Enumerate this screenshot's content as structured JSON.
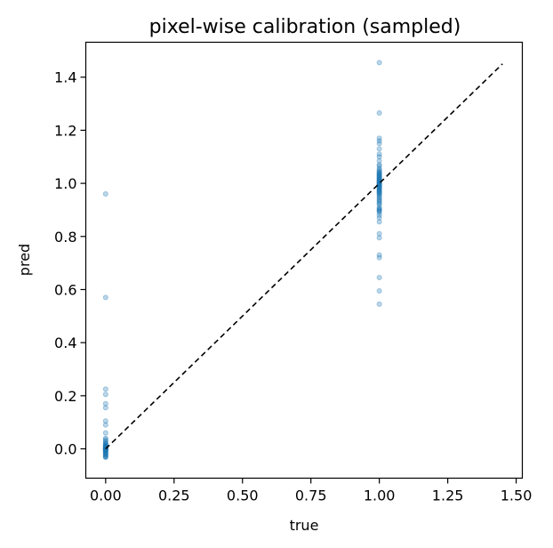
{
  "chart_data": {
    "type": "scatter",
    "title": "pixel-wise calibration (sampled)",
    "xlabel": "true",
    "ylabel": "pred",
    "xlim": [
      -0.0725,
      1.5225
    ],
    "ylim": [
      -0.1105,
      1.5315
    ],
    "xticks": [
      "0.00",
      "0.25",
      "0.50",
      "0.75",
      "1.00",
      "1.25",
      "1.50"
    ],
    "yticks": [
      "0.0",
      "0.2",
      "0.4",
      "0.6",
      "0.8",
      "1.0",
      "1.2",
      "1.4"
    ],
    "grid": false,
    "point_color": "#1f77b4",
    "point_alpha": 0.3,
    "reference_line": {
      "x": [
        0,
        1.45
      ],
      "y": [
        0,
        1.45
      ],
      "style": "dashed",
      "color": "#000000"
    },
    "points": {
      "x": [
        0,
        0,
        0,
        0,
        0,
        0,
        0,
        0,
        0,
        0,
        0,
        0,
        0,
        0,
        0,
        0,
        0,
        0,
        0,
        0,
        0,
        0,
        0,
        0,
        0,
        0,
        0,
        0,
        0,
        0,
        0,
        0,
        0,
        0,
        0,
        0,
        0,
        0,
        0,
        0,
        0,
        0,
        0,
        0,
        0,
        0,
        0,
        0,
        0,
        0,
        1,
        1,
        1,
        1,
        1,
        1,
        1,
        1,
        1,
        1,
        1,
        1,
        1,
        1,
        1,
        1,
        1,
        1,
        1,
        1,
        1,
        1,
        1,
        1,
        1,
        1,
        1,
        1,
        1,
        1,
        1,
        1,
        1,
        1,
        1,
        1,
        1,
        1,
        1,
        1,
        1,
        1,
        1,
        1,
        1,
        1,
        1,
        1,
        1,
        1,
        1,
        1,
        1,
        1,
        1,
        1,
        1,
        1,
        1,
        1,
        1,
        1,
        1,
        1,
        1,
        1,
        1,
        1,
        1,
        1,
        1,
        1,
        1,
        1,
        1,
        1,
        1
      ],
      "y": [
        0.96,
        0.57,
        0.225,
        0.205,
        0.17,
        0.155,
        0.105,
        0.09,
        0.06,
        0.04,
        0.035,
        0.03,
        0.025,
        0.02,
        0.018,
        0.015,
        0.012,
        0.01,
        0.008,
        0.006,
        0.005,
        0.004,
        0.003,
        0.002,
        0.001,
        0.0,
        0.0,
        -0.001,
        -0.002,
        -0.003,
        -0.004,
        -0.005,
        -0.006,
        -0.008,
        -0.01,
        -0.012,
        -0.015,
        -0.018,
        -0.02,
        -0.022,
        -0.025,
        -0.028,
        -0.03,
        -0.032,
        0.0,
        0.003,
        -0.003,
        0.007,
        -0.007,
        0.013,
        1.455,
        1.265,
        1.17,
        1.16,
        1.15,
        1.13,
        1.11,
        1.1,
        1.085,
        1.07,
        1.065,
        1.055,
        1.05,
        1.045,
        1.04,
        1.04,
        1.035,
        1.035,
        1.03,
        1.03,
        1.025,
        1.025,
        1.02,
        1.02,
        1.018,
        1.015,
        1.012,
        1.01,
        1.008,
        1.006,
        1.004,
        1.002,
        1.0,
        1.0,
        0.998,
        0.996,
        0.994,
        0.992,
        0.99,
        0.988,
        0.985,
        0.982,
        0.98,
        0.978,
        0.975,
        0.972,
        0.97,
        0.968,
        0.965,
        0.962,
        0.96,
        0.955,
        0.95,
        0.945,
        0.94,
        0.935,
        0.93,
        0.925,
        0.92,
        0.91,
        0.905,
        0.9,
        0.9,
        0.895,
        0.89,
        0.88,
        0.87,
        0.855,
        0.81,
        0.795,
        0.73,
        0.72,
        0.645,
        0.595,
        0.545,
        1.01,
        0.99
      ]
    }
  }
}
